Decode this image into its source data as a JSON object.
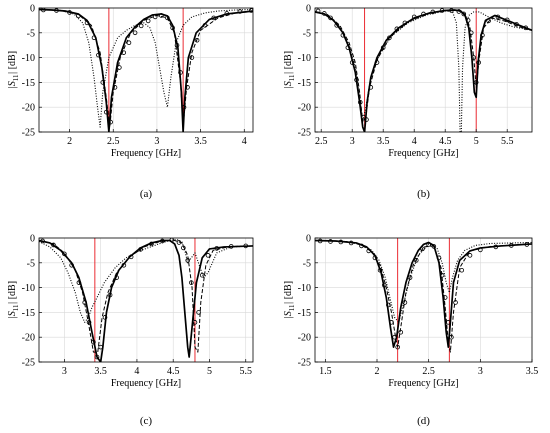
{
  "figure": {
    "colors": {
      "curve": "#000000",
      "marker_vertical": "#e8141c",
      "grid": "#d9d9d9",
      "axes": "#000000"
    }
  },
  "chart_data": [
    {
      "type": "line",
      "panel_label": "(a)",
      "xlabel": "Frequency [GHz]",
      "ylabel": "|S11| [dB]",
      "xlim": [
        1.65,
        4.1
      ],
      "ylim": [
        -25,
        0
      ],
      "xticks": [
        2,
        2.5,
        3,
        3.5,
        4
      ],
      "yticks": [
        0,
        -5,
        -10,
        -15,
        -20,
        -25
      ],
      "grid": true,
      "vertical_markers": [
        2.45,
        3.3
      ],
      "series": [
        {
          "style": "solid",
          "x": [
            1.65,
            1.8,
            1.95,
            2.1,
            2.2,
            2.3,
            2.37,
            2.42,
            2.45,
            2.48,
            2.55,
            2.65,
            2.75,
            2.85,
            2.95,
            3.05,
            3.12,
            3.18,
            3.24,
            3.28,
            3.3,
            3.32,
            3.36,
            3.45,
            3.6,
            3.8,
            4.0,
            4.1
          ],
          "y": [
            -0.3,
            -0.4,
            -0.6,
            -1.2,
            -2.5,
            -6,
            -12,
            -19,
            -25,
            -18,
            -11,
            -6,
            -3.8,
            -2.3,
            -1.4,
            -1.2,
            -1.6,
            -3.5,
            -8,
            -17,
            -25,
            -18,
            -10,
            -5,
            -2.3,
            -1.2,
            -0.8,
            -0.6
          ]
        },
        {
          "style": "dashed",
          "x": [
            1.65,
            1.9,
            2.1,
            2.25,
            2.35,
            2.42,
            2.46,
            2.5,
            2.58,
            2.7,
            2.85,
            3.0,
            3.12,
            3.2,
            3.27,
            3.3,
            3.34,
            3.4,
            3.5,
            3.7,
            3.9,
            4.1
          ],
          "y": [
            -0.3,
            -0.5,
            -1.3,
            -3.5,
            -9,
            -18,
            -24,
            -17,
            -10,
            -5,
            -2.5,
            -1.5,
            -2,
            -5,
            -15,
            -24,
            -16,
            -9,
            -4.5,
            -2,
            -1,
            -0.7
          ]
        },
        {
          "style": "dotted",
          "x": [
            1.65,
            1.9,
            2.05,
            2.15,
            2.22,
            2.28,
            2.32,
            2.35,
            2.38,
            2.45,
            2.55,
            2.65,
            2.75,
            2.85,
            2.92,
            2.98,
            3.03,
            3.08,
            3.12,
            3.16,
            3.22,
            3.3,
            3.4,
            3.55,
            3.7,
            3.9,
            4.1
          ],
          "y": [
            -0.3,
            -0.5,
            -1.2,
            -3,
            -7,
            -14,
            -20,
            -24,
            -17,
            -10,
            -6,
            -4.5,
            -3.5,
            -3,
            -4,
            -7,
            -12,
            -17,
            -20,
            -14,
            -7,
            -3.5,
            -1.8,
            -1,
            -0.6,
            -0.4,
            -0.3
          ]
        },
        {
          "style": "circles",
          "x": [
            1.7,
            1.85,
            2.0,
            2.1,
            2.2,
            2.28,
            2.33,
            2.38,
            2.42,
            2.47,
            2.52,
            2.57,
            2.62,
            2.68,
            2.75,
            2.82,
            2.9,
            2.98,
            3.05,
            3.12,
            3.18,
            3.23,
            3.27,
            3.31,
            3.35,
            3.4,
            3.46,
            3.55,
            3.65,
            3.8,
            3.95,
            4.08
          ],
          "y": [
            -0.4,
            -0.5,
            -0.9,
            -1.6,
            -3,
            -6,
            -9.5,
            -15,
            -21,
            -23,
            -16,
            -12,
            -9,
            -7,
            -5,
            -3.6,
            -2.6,
            -1.8,
            -1.5,
            -2,
            -4,
            -7.5,
            -13,
            -20,
            -16,
            -10,
            -6.5,
            -3.5,
            -2,
            -1.1,
            -0.7,
            -0.5
          ]
        }
      ]
    },
    {
      "type": "line",
      "panel_label": "(b)",
      "xlabel": "Frequency [GHz]",
      "ylabel": "|S11| [dB]",
      "xlim": [
        2.4,
        5.9
      ],
      "ylim": [
        -25,
        0
      ],
      "xticks": [
        2.5,
        3,
        3.5,
        4,
        4.5,
        5,
        5.5
      ],
      "yticks": [
        0,
        -5,
        -10,
        -15,
        -20,
        -25
      ],
      "grid": true,
      "vertical_markers": [
        3.2,
        5.0
      ],
      "series": [
        {
          "style": "solid",
          "x": [
            2.4,
            2.55,
            2.7,
            2.85,
            2.95,
            3.05,
            3.12,
            3.17,
            3.2,
            3.24,
            3.3,
            3.4,
            3.55,
            3.75,
            4.0,
            4.25,
            4.5,
            4.65,
            4.75,
            4.82,
            4.88,
            4.93,
            4.97,
            5.0,
            5.03,
            5.08,
            5.15,
            5.3,
            5.5,
            5.7,
            5.9
          ],
          "y": [
            -0.8,
            -1.2,
            -2.5,
            -5,
            -8,
            -13,
            -19,
            -24,
            -25,
            -19,
            -14,
            -10,
            -6.5,
            -4,
            -2,
            -1,
            -0.5,
            -0.4,
            -0.6,
            -1.5,
            -4,
            -10,
            -17,
            -18,
            -11,
            -5.5,
            -2.5,
            -1.5,
            -2.5,
            -3.5,
            -4.5
          ]
        },
        {
          "style": "dashed",
          "x": [
            2.4,
            2.6,
            2.8,
            2.95,
            3.05,
            3.12,
            3.17,
            3.22,
            3.28,
            3.4,
            3.6,
            3.9,
            4.2,
            4.5,
            4.7,
            4.82,
            4.9,
            4.96,
            5.0,
            5.05,
            5.12,
            5.25,
            5.45,
            5.7,
            5.9
          ],
          "y": [
            -0.7,
            -1.3,
            -3.5,
            -7,
            -11,
            -17,
            -23,
            -22,
            -16,
            -10.5,
            -6,
            -2.8,
            -1.2,
            -0.5,
            -0.5,
            -1.2,
            -4,
            -10,
            -16,
            -10,
            -4,
            -2,
            -2.6,
            -3.8,
            -4.5
          ]
        },
        {
          "style": "dotted",
          "x": [
            2.4,
            2.6,
            2.8,
            2.95,
            3.05,
            3.12,
            3.17,
            3.22,
            3.3,
            3.45,
            3.65,
            3.9,
            4.2,
            4.5,
            4.62,
            4.68,
            4.72,
            4.74,
            4.76,
            4.78,
            4.82,
            4.88,
            4.96,
            5.05,
            5.2,
            5.4,
            5.6,
            5.9
          ],
          "y": [
            -0.7,
            -1.5,
            -3.8,
            -7.5,
            -12,
            -18,
            -23,
            -20,
            -14,
            -9,
            -5.5,
            -3,
            -1.4,
            -0.6,
            -0.8,
            -3,
            -12,
            -25,
            -25,
            -12,
            -4,
            -1.5,
            -0.8,
            -0.8,
            -1.8,
            -3,
            -3.8,
            -4.5
          ]
        },
        {
          "style": "circles",
          "x": [
            2.45,
            2.55,
            2.65,
            2.75,
            2.85,
            2.93,
            3.0,
            3.07,
            3.13,
            3.18,
            3.23,
            3.3,
            3.4,
            3.5,
            3.6,
            3.72,
            3.85,
            4.0,
            4.15,
            4.3,
            4.45,
            4.6,
            4.72,
            4.8,
            4.87,
            4.92,
            4.96,
            5.0,
            5.04,
            5.1,
            5.2,
            5.35,
            5.5,
            5.65,
            5.8
          ],
          "y": [
            -0.6,
            -1.1,
            -2,
            -3.5,
            -5.5,
            -8,
            -11,
            -14.5,
            -19,
            -22,
            -22.5,
            -16,
            -11,
            -8,
            -6,
            -4.2,
            -3,
            -1.8,
            -1.2,
            -0.8,
            -0.5,
            -0.5,
            -0.7,
            -1.2,
            -2.5,
            -5,
            -10,
            -15,
            -11,
            -5.5,
            -2.6,
            -1.8,
            -2.4,
            -3.3,
            -4
          ]
        }
      ]
    },
    {
      "type": "line",
      "panel_label": "(c)",
      "xlabel": "Frequency [GHz]",
      "ylabel": "|S11| [dB]",
      "xlim": [
        2.65,
        5.6
      ],
      "ylim": [
        -25,
        0
      ],
      "xticks": [
        3,
        3.5,
        4,
        4.5,
        5,
        5.5
      ],
      "yticks": [
        0,
        -5,
        -10,
        -15,
        -20,
        -25
      ],
      "grid": true,
      "vertical_markers": [
        3.42,
        4.8
      ],
      "series": [
        {
          "style": "solid",
          "x": [
            2.65,
            2.8,
            2.95,
            3.1,
            3.2,
            3.3,
            3.38,
            3.45,
            3.5,
            3.53,
            3.58,
            3.65,
            3.75,
            3.9,
            4.05,
            4.2,
            4.35,
            4.45,
            4.52,
            4.58,
            4.62,
            4.66,
            4.7,
            4.72,
            4.76,
            4.82,
            4.9,
            5.0,
            5.2,
            5.4,
            5.6
          ],
          "y": [
            -0.5,
            -1,
            -2.5,
            -5,
            -8,
            -13,
            -19,
            -24,
            -25,
            -22,
            -15,
            -10,
            -6.5,
            -3.8,
            -2,
            -1,
            -0.5,
            -0.5,
            -1.2,
            -3.5,
            -8,
            -15,
            -22,
            -24,
            -18,
            -9,
            -4,
            -2.2,
            -1.8,
            -1.7,
            -1.6
          ]
        },
        {
          "style": "dashed",
          "x": [
            2.65,
            2.85,
            3.0,
            3.15,
            3.25,
            3.33,
            3.4,
            3.46,
            3.52,
            3.6,
            3.72,
            3.9,
            4.1,
            4.3,
            4.5,
            4.62,
            4.7,
            4.76,
            4.8,
            4.84,
            4.88,
            4.95,
            5.05,
            5.25,
            5.45,
            5.6
          ],
          "y": [
            -0.5,
            -1.2,
            -3,
            -6.5,
            -11,
            -17,
            -23,
            -23,
            -16,
            -11,
            -7,
            -3.8,
            -1.8,
            -0.8,
            -0.4,
            -1,
            -3.5,
            -10,
            -22,
            -23,
            -13,
            -5.5,
            -2.5,
            -1.8,
            -1.6,
            -1.6
          ]
        },
        {
          "style": "dotted",
          "x": [
            2.65,
            2.8,
            2.95,
            3.05,
            3.15,
            3.22,
            3.28,
            3.33,
            3.38,
            3.45,
            3.55,
            3.7,
            3.85,
            4.0,
            4.15,
            4.3,
            4.45,
            4.55,
            4.62,
            4.66,
            4.7,
            4.75,
            4.8,
            4.86,
            4.92,
            4.98,
            5.1,
            5.3,
            5.6
          ],
          "y": [
            -0.7,
            -1.8,
            -4,
            -7,
            -11,
            -15,
            -17,
            -16,
            -14,
            -12,
            -9,
            -6,
            -4,
            -2.8,
            -2,
            -1.2,
            -0.5,
            -0.3,
            -0.8,
            -2.5,
            -5,
            -4,
            -3,
            -5.5,
            -8,
            -7,
            -3,
            -1.8,
            -1.6
          ]
        },
        {
          "style": "circles",
          "x": [
            2.7,
            2.85,
            3.0,
            3.1,
            3.2,
            3.28,
            3.34,
            3.4,
            3.45,
            3.5,
            3.56,
            3.63,
            3.72,
            3.82,
            3.92,
            4.05,
            4.2,
            4.35,
            4.48,
            4.58,
            4.64,
            4.7,
            4.75,
            4.8,
            4.85,
            4.9,
            4.98,
            5.1,
            5.3,
            5.5
          ],
          "y": [
            -0.6,
            -1.4,
            -3.2,
            -5.5,
            -9,
            -13,
            -17,
            -21,
            -24,
            -22,
            -16,
            -11.5,
            -8,
            -5.5,
            -3.8,
            -2.3,
            -1.2,
            -0.6,
            -0.4,
            -0.9,
            -2,
            -4.5,
            -9,
            -17,
            -15,
            -7.5,
            -3.5,
            -2.1,
            -1.7,
            -1.6
          ]
        }
      ]
    },
    {
      "type": "line",
      "panel_label": "(d)",
      "xlabel": "Frequency [GHz]",
      "ylabel": "|S11| [dB]",
      "xlim": [
        1.4,
        3.5
      ],
      "ylim": [
        -25,
        0
      ],
      "xticks": [
        1.5,
        2,
        2.5,
        3,
        3.5
      ],
      "yticks": [
        0,
        -5,
        -10,
        -15,
        -20,
        -25
      ],
      "grid": true,
      "vertical_markers": [
        2.2,
        2.7
      ],
      "series": [
        {
          "style": "solid",
          "x": [
            1.4,
            1.6,
            1.8,
            1.9,
            1.98,
            2.04,
            2.09,
            2.13,
            2.16,
            2.19,
            2.23,
            2.28,
            2.34,
            2.4,
            2.45,
            2.5,
            2.55,
            2.6,
            2.64,
            2.67,
            2.69,
            2.71,
            2.74,
            2.8,
            2.9,
            3.0,
            3.2,
            3.5
          ],
          "y": [
            -0.5,
            -0.6,
            -1,
            -1.8,
            -3.5,
            -7,
            -12,
            -18,
            -22,
            -20,
            -14,
            -9,
            -5,
            -2.5,
            -1.3,
            -0.9,
            -1.5,
            -5,
            -12,
            -19,
            -22,
            -17,
            -9,
            -4.5,
            -2.6,
            -2,
            -1.6,
            -1.2
          ]
        },
        {
          "style": "dashed",
          "x": [
            1.4,
            1.7,
            1.85,
            1.95,
            2.03,
            2.09,
            2.14,
            2.18,
            2.2,
            2.23,
            2.28,
            2.35,
            2.45,
            2.55,
            2.62,
            2.66,
            2.69,
            2.71,
            2.74,
            2.8,
            2.9,
            3.1,
            3.5
          ],
          "y": [
            -0.5,
            -0.7,
            -1.4,
            -2.8,
            -5.5,
            -10,
            -15,
            -20,
            -22,
            -18,
            -11,
            -5.5,
            -1.8,
            -1.6,
            -6,
            -14,
            -21,
            -23,
            -15,
            -6,
            -2.6,
            -1.7,
            -1.2
          ]
        },
        {
          "style": "dotted",
          "x": [
            1.4,
            1.7,
            1.85,
            1.95,
            2.02,
            2.08,
            2.13,
            2.17,
            2.21,
            2.26,
            2.32,
            2.4,
            2.5,
            2.58,
            2.63,
            2.67,
            2.7,
            2.73,
            2.78,
            2.85,
            2.95,
            3.1,
            3.5
          ],
          "y": [
            -0.5,
            -0.7,
            -1.3,
            -2.5,
            -4.5,
            -8,
            -12.5,
            -16,
            -17,
            -13,
            -8,
            -3.5,
            -1.2,
            -2,
            -5,
            -9,
            -11,
            -8,
            -4.5,
            -2.5,
            -1.5,
            -1.1,
            -0.9
          ]
        },
        {
          "style": "circles",
          "x": [
            1.45,
            1.55,
            1.65,
            1.75,
            1.85,
            1.92,
            1.98,
            2.03,
            2.07,
            2.11,
            2.14,
            2.17,
            2.2,
            2.23,
            2.27,
            2.32,
            2.38,
            2.44,
            2.5,
            2.55,
            2.6,
            2.63,
            2.66,
            2.69,
            2.72,
            2.76,
            2.82,
            2.9,
            3.0,
            3.15,
            3.3,
            3.45
          ],
          "y": [
            -0.6,
            -0.7,
            -0.8,
            -1,
            -1.6,
            -2.6,
            -4,
            -6.5,
            -9.5,
            -13.5,
            -17,
            -20,
            -22,
            -19,
            -13,
            -8,
            -4.5,
            -2.2,
            -1.3,
            -1.7,
            -4,
            -7.5,
            -12,
            -17,
            -20,
            -13,
            -6.5,
            -3.5,
            -2.4,
            -1.8,
            -1.5,
            -1.3
          ]
        }
      ]
    }
  ]
}
